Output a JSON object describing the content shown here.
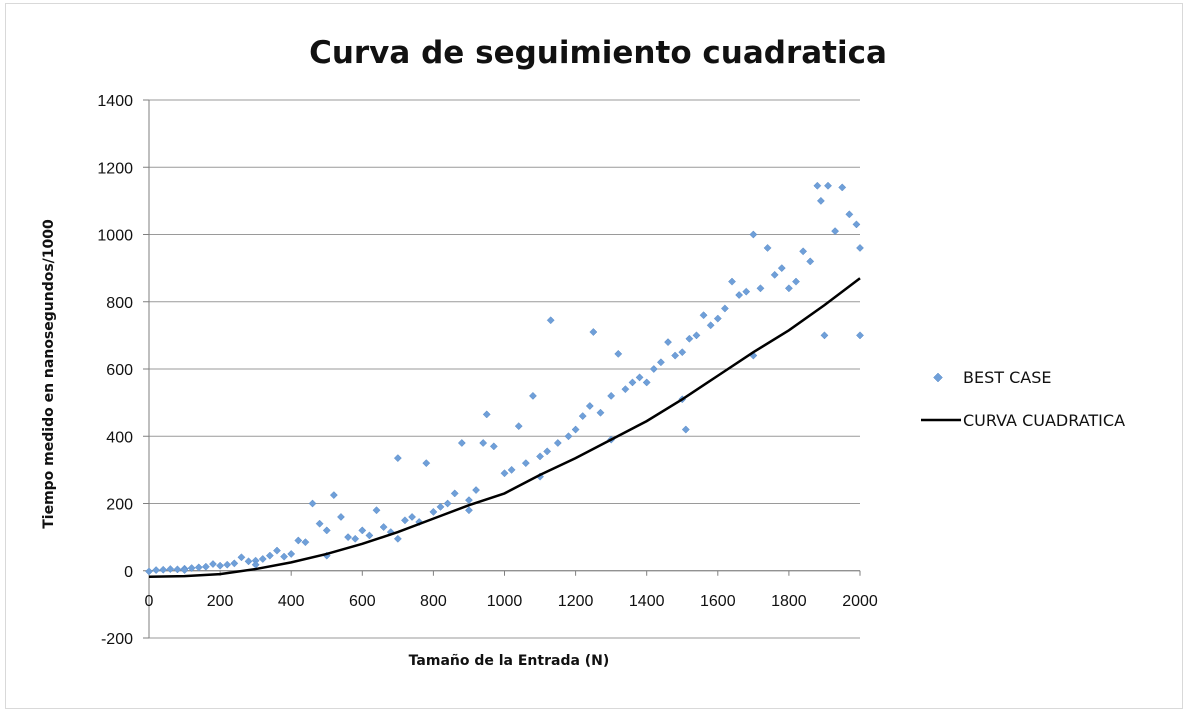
{
  "chart_data": {
    "type": "scatter",
    "title": "Curva de seguimiento cuadratica",
    "xlabel": "Tamaño  de la Entrada (N)",
    "ylabel": "Tiempo medido en nanosegundos/1000",
    "xlim": [
      0,
      2000
    ],
    "ylim": [
      -200,
      1400
    ],
    "x_ticks": [
      "0",
      "200",
      "400",
      "600",
      "800",
      "1000",
      "1200",
      "1400",
      "1600",
      "1800",
      "2000"
    ],
    "y_ticks": [
      "-200",
      "0",
      "200",
      "400",
      "600",
      "800",
      "1000",
      "1200",
      "1400"
    ],
    "grid": "horizontal",
    "legend_position": "right",
    "series": [
      {
        "name": "BEST CASE",
        "kind": "scatter",
        "marker": "diamond",
        "color": "#6f9fd8",
        "points": [
          [
            0,
            -2
          ],
          [
            20,
            2
          ],
          [
            40,
            3
          ],
          [
            60,
            5
          ],
          [
            80,
            4
          ],
          [
            100,
            6
          ],
          [
            120,
            8
          ],
          [
            140,
            10
          ],
          [
            160,
            12
          ],
          [
            180,
            20
          ],
          [
            200,
            15
          ],
          [
            220,
            18
          ],
          [
            240,
            22
          ],
          [
            260,
            40
          ],
          [
            280,
            28
          ],
          [
            300,
            30
          ],
          [
            320,
            35
          ],
          [
            340,
            45
          ],
          [
            360,
            60
          ],
          [
            380,
            42
          ],
          [
            400,
            50
          ],
          [
            420,
            90
          ],
          [
            440,
            85
          ],
          [
            460,
            200
          ],
          [
            480,
            140
          ],
          [
            500,
            120
          ],
          [
            520,
            225
          ],
          [
            540,
            160
          ],
          [
            560,
            100
          ],
          [
            580,
            95
          ],
          [
            600,
            120
          ],
          [
            620,
            105
          ],
          [
            640,
            180
          ],
          [
            660,
            130
          ],
          [
            680,
            115
          ],
          [
            700,
            335
          ],
          [
            720,
            150
          ],
          [
            740,
            160
          ],
          [
            760,
            145
          ],
          [
            780,
            320
          ],
          [
            800,
            175
          ],
          [
            820,
            190
          ],
          [
            840,
            200
          ],
          [
            860,
            230
          ],
          [
            880,
            380
          ],
          [
            900,
            210
          ],
          [
            920,
            240
          ],
          [
            940,
            380
          ],
          [
            950,
            465
          ],
          [
            970,
            370
          ],
          [
            1000,
            290
          ],
          [
            1020,
            300
          ],
          [
            1040,
            430
          ],
          [
            1060,
            320
          ],
          [
            1080,
            520
          ],
          [
            1100,
            340
          ],
          [
            1120,
            355
          ],
          [
            1130,
            745
          ],
          [
            1150,
            380
          ],
          [
            1180,
            400
          ],
          [
            1200,
            420
          ],
          [
            1220,
            460
          ],
          [
            1240,
            490
          ],
          [
            1250,
            710
          ],
          [
            1270,
            470
          ],
          [
            1300,
            520
          ],
          [
            1320,
            645
          ],
          [
            1340,
            540
          ],
          [
            1360,
            560
          ],
          [
            1380,
            575
          ],
          [
            1400,
            560
          ],
          [
            1420,
            600
          ],
          [
            1440,
            620
          ],
          [
            1460,
            680
          ],
          [
            1480,
            640
          ],
          [
            1500,
            650
          ],
          [
            1510,
            420
          ],
          [
            1520,
            690
          ],
          [
            1540,
            700
          ],
          [
            1560,
            760
          ],
          [
            1580,
            730
          ],
          [
            1600,
            750
          ],
          [
            1620,
            780
          ],
          [
            1640,
            860
          ],
          [
            1660,
            820
          ],
          [
            1680,
            830
          ],
          [
            1700,
            1000
          ],
          [
            1720,
            840
          ],
          [
            1740,
            960
          ],
          [
            1760,
            880
          ],
          [
            1780,
            900
          ],
          [
            1800,
            840
          ],
          [
            1820,
            860
          ],
          [
            1840,
            950
          ],
          [
            1860,
            920
          ],
          [
            1880,
            1145
          ],
          [
            1890,
            1100
          ],
          [
            1910,
            1145
          ],
          [
            1930,
            1010
          ],
          [
            1950,
            1140
          ],
          [
            1970,
            1060
          ],
          [
            1990,
            1030
          ],
          [
            2000,
            960
          ],
          [
            100,
            2
          ],
          [
            300,
            18
          ],
          [
            500,
            45
          ],
          [
            700,
            95
          ],
          [
            900,
            180
          ],
          [
            1100,
            280
          ],
          [
            1300,
            390
          ],
          [
            1500,
            510
          ],
          [
            1700,
            640
          ],
          [
            1900,
            700
          ],
          [
            2000,
            700
          ]
        ]
      },
      {
        "name": "CURVA CUADRATICA",
        "kind": "line",
        "color": "#000000",
        "x": [
          0,
          100,
          200,
          300,
          400,
          500,
          600,
          700,
          800,
          900,
          1000,
          1100,
          1200,
          1300,
          1400,
          1500,
          1600,
          1700,
          1800,
          1900,
          2000
        ],
        "y": [
          -18,
          -16,
          -10,
          5,
          25,
          50,
          80,
          115,
          155,
          195,
          230,
          285,
          335,
          390,
          445,
          510,
          580,
          650,
          715,
          790,
          870
        ]
      }
    ]
  }
}
